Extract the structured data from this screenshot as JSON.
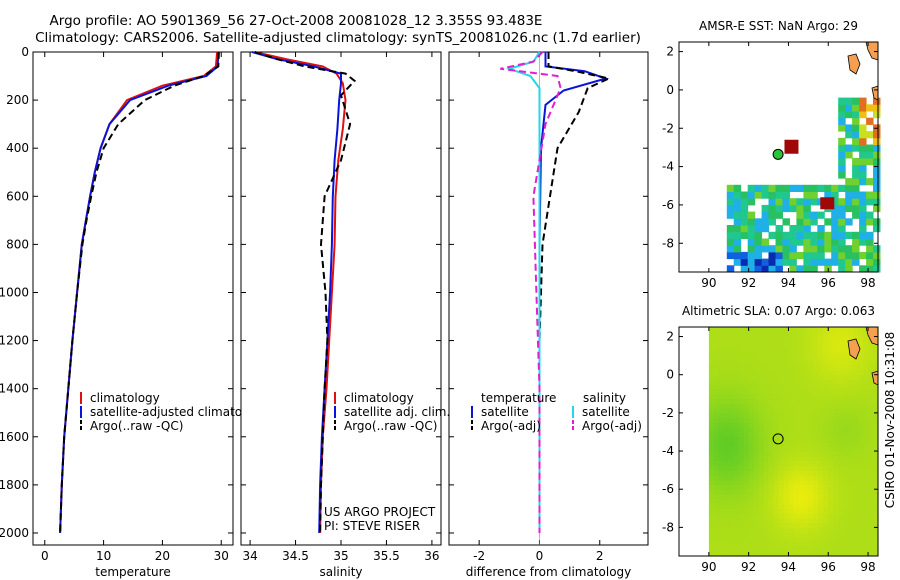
{
  "header": {
    "line1": "Argo profile: AO 5901369_56 27-Oct-2008 20081028_12 3.355S 93.483E",
    "line2": "Climatology: CARS2006. Satellite-adjusted climatology: synTS_20081026.nc (1.7d earlier)"
  },
  "side_label": "CSIRO 01-Nov-2008 10:31:08",
  "colors": {
    "climatology": "#e01010",
    "satellite": "#0a14d8",
    "argo": "#000000",
    "cyan": "#22d8e8",
    "magenta": "#e020d0",
    "land": "#f5a050",
    "float": "#2cc43c"
  },
  "chart_data": [
    {
      "type": "line",
      "xlabel": "temperature",
      "xlim": [
        -2,
        32
      ],
      "ylim": [
        0,
        2050
      ],
      "xticks": [
        0,
        10,
        20,
        30
      ],
      "yticks": [
        0,
        200,
        400,
        600,
        800,
        1000,
        1200,
        1400,
        1600,
        1800,
        2000
      ],
      "yticklabels": [
        "0",
        "200",
        "400",
        "600",
        "800",
        "1000",
        "1200",
        "1400",
        "1600",
        "1800",
        "2000"
      ],
      "series": [
        {
          "name": "climatology",
          "style": "solid",
          "color": "#e01010",
          "x": [
            29.3,
            29.1,
            27,
            20,
            14,
            11,
            9.5,
            8.5,
            7.7,
            7,
            6.3,
            5.5,
            4.7,
            4,
            3.3,
            2.9,
            2.6
          ],
          "y": [
            0,
            60,
            100,
            140,
            200,
            300,
            400,
            500,
            600,
            700,
            800,
            1000,
            1200,
            1400,
            1600,
            1800,
            2000
          ]
        },
        {
          "name": "satellite-adjusted climatology",
          "style": "solid",
          "color": "#0a14d8",
          "x": [
            29.5,
            29.4,
            27.5,
            21,
            14.5,
            11,
            9.5,
            8.5,
            7.7,
            7,
            6.3,
            5.5,
            4.7,
            4,
            3.3,
            2.9,
            2.6
          ],
          "y": [
            0,
            60,
            100,
            140,
            200,
            300,
            400,
            500,
            600,
            700,
            800,
            1000,
            1200,
            1400,
            1600,
            1800,
            2000
          ]
        },
        {
          "name": "Argo(..raw -QC)",
          "style": "dash",
          "color": "#000000",
          "x": [
            29.6,
            29.5,
            27,
            22,
            17,
            12.5,
            10,
            8.8,
            7.9,
            7.1,
            6.4,
            5.5,
            4.7,
            4,
            3.3,
            2.9,
            2.6
          ],
          "y": [
            0,
            60,
            100,
            140,
            200,
            300,
            400,
            500,
            600,
            700,
            800,
            1000,
            1200,
            1400,
            1600,
            1800,
            2000
          ]
        }
      ],
      "legend": [
        "climatology",
        "satellite-adjusted climatology",
        "Argo(..raw -QC)"
      ]
    },
    {
      "type": "line",
      "xlabel": "salinity",
      "xlim": [
        33.9,
        36.1
      ],
      "ylim": [
        0,
        2050
      ],
      "xticks": [
        34,
        34.5,
        35,
        35.5,
        36
      ],
      "xticklabels": [
        "34",
        "34.5",
        "35",
        "35.5",
        "36"
      ],
      "series": [
        {
          "name": "climatology",
          "style": "solid",
          "color": "#e01010",
          "x": [
            34.05,
            34.4,
            34.8,
            34.95,
            35.02,
            35.05,
            35.02,
            34.97,
            34.94,
            34.93,
            34.9,
            34.87,
            34.84,
            34.8,
            34.78,
            34.77
          ],
          "y": [
            0,
            30,
            60,
            90,
            130,
            200,
            320,
            450,
            600,
            800,
            1000,
            1200,
            1400,
            1600,
            1800,
            2000
          ]
        },
        {
          "name": "satellite adj. clim.",
          "style": "solid",
          "color": "#0a14d8",
          "x": [
            34.02,
            34.3,
            34.7,
            35.0,
            35.0,
            34.98,
            34.96,
            34.93,
            34.91,
            34.9,
            34.88,
            34.85,
            34.82,
            34.79,
            34.77,
            34.76
          ],
          "y": [
            0,
            30,
            60,
            90,
            130,
            200,
            320,
            450,
            600,
            800,
            1000,
            1200,
            1400,
            1600,
            1800,
            2000
          ]
        },
        {
          "name": "Argo(..raw -QC)",
          "style": "dash",
          "color": "#000000",
          "x": [
            34.05,
            34.3,
            34.6,
            35.05,
            35.15,
            35.0,
            35.1,
            35.0,
            34.82,
            34.78,
            34.83,
            34.85,
            34.82,
            34.8,
            34.78,
            34.77
          ],
          "y": [
            0,
            30,
            60,
            90,
            120,
            180,
            300,
            450,
            600,
            800,
            1000,
            1200,
            1400,
            1600,
            1800,
            2000
          ]
        }
      ],
      "legend": [
        "climatology",
        "satellite adj. clim.",
        "Argo(..raw -QC)"
      ],
      "annotation": [
        "US ARGO PROJECT",
        "PI: STEVE RISER"
      ]
    },
    {
      "type": "line",
      "xlabel": "difference from climatology",
      "xlim": [
        -3,
        3.6
      ],
      "ylim": [
        0,
        2050
      ],
      "xticks": [
        -2,
        0,
        2
      ],
      "xticklabels": [
        "-2",
        "0",
        "2"
      ],
      "series": [
        {
          "name": "temperature satellite",
          "style": "solid",
          "color": "#0a14d8",
          "x": [
            0.2,
            0.2,
            1.5,
            2.2,
            0.8,
            0.2,
            0.05,
            0,
            0,
            0,
            0,
            0
          ],
          "y": [
            0,
            60,
            80,
            110,
            160,
            220,
            400,
            800,
            1200,
            1600,
            1800,
            2000
          ]
        },
        {
          "name": "temperature Argo(-adj)",
          "style": "dash",
          "color": "#000000",
          "x": [
            0.3,
            0.3,
            1.2,
            2.3,
            1.6,
            1.3,
            0.6,
            0.1,
            0,
            0,
            0,
            0
          ],
          "y": [
            0,
            60,
            80,
            110,
            150,
            250,
            400,
            800,
            1200,
            1600,
            1800,
            2000
          ]
        },
        {
          "name": "salinity satellite",
          "style": "solid",
          "color": "#22d8e8",
          "x": [
            0,
            -0.2,
            -1,
            -0.3,
            0,
            0,
            0,
            0,
            0,
            0,
            0
          ],
          "y": [
            0,
            40,
            70,
            100,
            150,
            300,
            600,
            1000,
            1400,
            1800,
            2000
          ]
        },
        {
          "name": "salinity Argo(-adj)",
          "style": "dash",
          "color": "#e020d0",
          "x": [
            0.1,
            -0.2,
            -1.3,
            0.6,
            0.7,
            0.2,
            -0.2,
            -0.1,
            0,
            0,
            0
          ],
          "y": [
            0,
            40,
            70,
            100,
            150,
            300,
            600,
            1000,
            1400,
            1800,
            2000
          ]
        }
      ],
      "legend": [
        "temperature",
        "satellite",
        "Argo(-adj)",
        "salinity",
        "satellite",
        "Argo(-adj)"
      ]
    },
    {
      "type": "heatmap",
      "title": "AMSR-E SST: NaN Argo: 29",
      "xlim": [
        88.5,
        98.5
      ],
      "ylim": [
        -9.5,
        2.5
      ],
      "xticks": [
        90,
        92,
        94,
        96,
        98
      ],
      "yticks": [
        2,
        0,
        -2,
        -4,
        -6,
        -8
      ],
      "xticklabels": [
        "90",
        "92",
        "94",
        "96",
        "98"
      ],
      "yticklabels": [
        "2",
        "0",
        "-2",
        "-4",
        "-6",
        "-8"
      ],
      "float_lon": 93.48,
      "float_lat": -3.36
    },
    {
      "type": "heatmap",
      "title": "Altimetric SLA: 0.07 Argo: 0.063",
      "xlim": [
        88.5,
        98.5
      ],
      "ylim": [
        -9.5,
        2.5
      ],
      "xticks": [
        90,
        92,
        94,
        96,
        98
      ],
      "yticks": [
        2,
        0,
        -2,
        -4,
        -6,
        -8
      ],
      "xticklabels": [
        "90",
        "92",
        "94",
        "96",
        "98"
      ],
      "yticklabels": [
        "2",
        "0",
        "-2",
        "-4",
        "-6",
        "-8"
      ],
      "float_lon": 93.48,
      "float_lat": -3.36
    }
  ]
}
